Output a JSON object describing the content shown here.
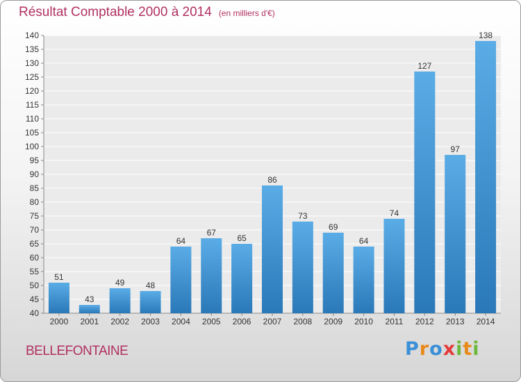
{
  "title": "Résultat Comptable 2000 à 2014",
  "subtitle": "(en milliers d'€)",
  "town": "BELLEFONTAINE",
  "logo": {
    "letters": [
      "P",
      "r",
      "o",
      "x",
      "i",
      "t",
      "i"
    ],
    "colors": [
      "#3a8fd8",
      "#e88a1a",
      "#3a8fd8",
      "#e33a3a",
      "#6cb83a",
      "#e88a1a",
      "#6cb83a"
    ]
  },
  "colors": {
    "bar_top": "#5aace6",
    "bar_bottom": "#2a78b8",
    "text_accent": "#b03060"
  },
  "chart_data": {
    "type": "bar",
    "title": "Résultat Comptable 2000 à 2014",
    "subtitle": "(en milliers d'€)",
    "categories": [
      "2000",
      "2001",
      "2002",
      "2003",
      "2004",
      "2005",
      "2006",
      "2007",
      "2008",
      "2009",
      "2010",
      "2011",
      "2012",
      "2013",
      "2014"
    ],
    "values": [
      51,
      43,
      49,
      48,
      64,
      67,
      65,
      86,
      73,
      69,
      64,
      74,
      127,
      97,
      138
    ],
    "ylim": [
      40,
      140
    ],
    "yticks": [
      40,
      45,
      50,
      55,
      60,
      65,
      70,
      75,
      80,
      85,
      90,
      95,
      100,
      105,
      110,
      115,
      120,
      125,
      130,
      135,
      140
    ],
    "grid": true,
    "data_labels": true
  }
}
